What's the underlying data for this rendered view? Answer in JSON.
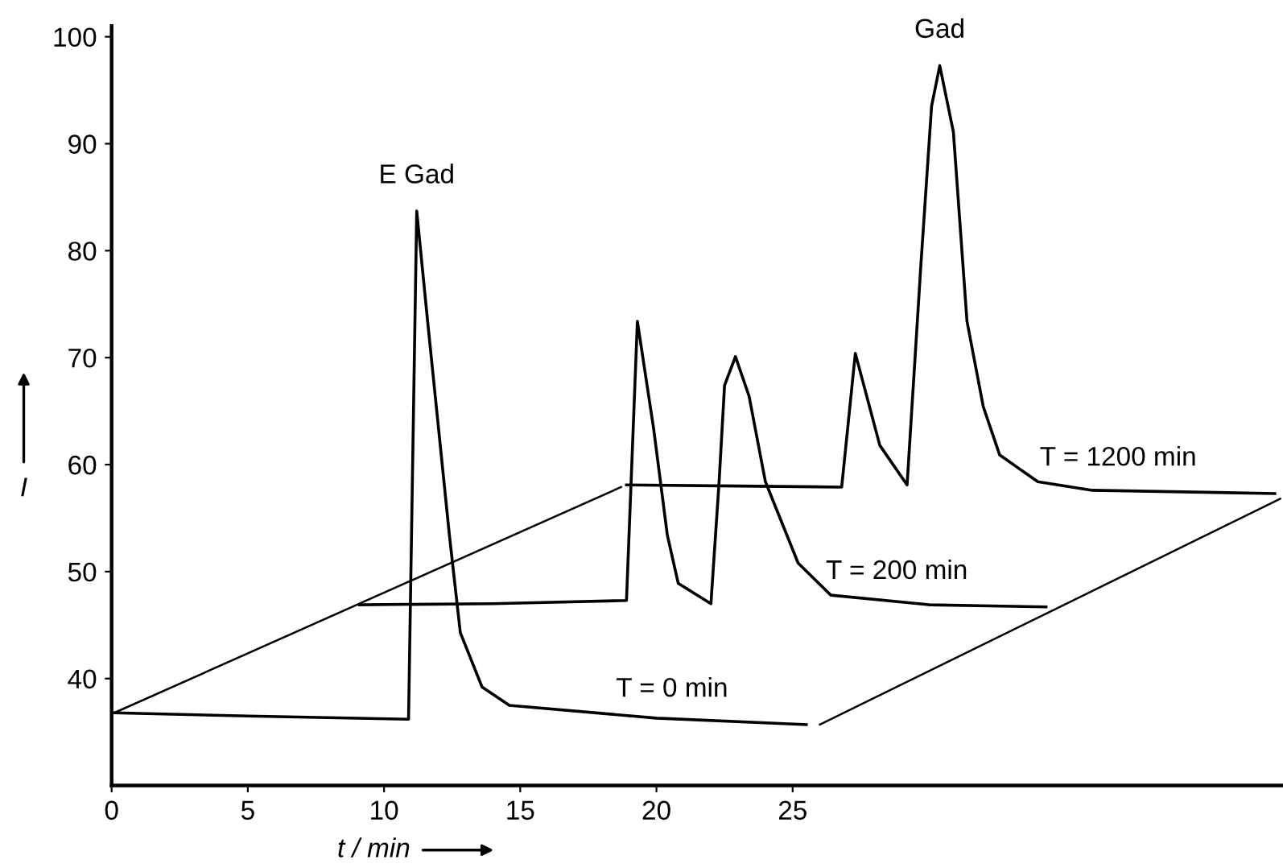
{
  "chart_data": {
    "type": "line",
    "xlabel": "t / min",
    "ylabel": "I",
    "xlim": [
      0,
      43
    ],
    "ylim": [
      30,
      101
    ],
    "xticks": [
      0,
      5,
      10,
      15,
      20,
      25
    ],
    "yticks": [
      40,
      50,
      60,
      70,
      80,
      90,
      100
    ],
    "grid": false,
    "legend": false,
    "marker": "none",
    "line_style": "solid",
    "annotations": [
      {
        "text": "E Gad",
        "x": 11.2,
        "y": 83.7
      },
      {
        "text": "Gad",
        "x": 30.4,
        "y": 97.3
      }
    ],
    "series": [
      {
        "name": "T = 0 min",
        "color": "#000000",
        "x": [
          0.1,
          5,
          10.9,
          11.2,
          11.6,
          11.9,
          12.4,
          12.8,
          13.6,
          14.6,
          20,
          25.5
        ],
        "values": [
          36.8,
          36.5,
          36.2,
          83.7,
          73.4,
          65.9,
          53.4,
          44.3,
          39.2,
          37.5,
          36.3,
          35.7
        ]
      },
      {
        "name": "T = 200 min",
        "color": "#000000",
        "x": [
          9.1,
          14,
          18.9,
          19.3,
          19.9,
          20.4,
          20.8,
          22.0,
          22.3,
          22.5,
          22.9,
          23.4,
          24.0,
          25.2,
          26.4,
          30,
          34.3
        ],
        "values": [
          46.9,
          47.0,
          47.3,
          73.4,
          63.3,
          53.4,
          48.9,
          47.0,
          58.4,
          67.4,
          70.1,
          66.4,
          58.4,
          50.8,
          47.8,
          46.9,
          46.7
        ]
      },
      {
        "name": "T = 1200 min",
        "color": "#000000",
        "x": [
          18.9,
          23,
          26.8,
          27.3,
          28.2,
          29.2,
          29.7,
          30.1,
          30.4,
          30.9,
          31.4,
          32.0,
          32.6,
          34.0,
          36.0,
          42.7
        ],
        "values": [
          58.1,
          58.0,
          57.9,
          70.4,
          61.8,
          58.1,
          78.4,
          93.5,
          97.3,
          91.1,
          73.4,
          65.4,
          60.9,
          58.4,
          57.6,
          57.3
        ]
      },
      {
        "color": "#000000",
        "x": [
          0.1,
          18.7
        ],
        "values": [
          36.8,
          57.9
        ]
      },
      {
        "color": "#000000",
        "x": [
          26.0,
          42.9
        ],
        "values": [
          35.7,
          56.8
        ]
      }
    ]
  }
}
